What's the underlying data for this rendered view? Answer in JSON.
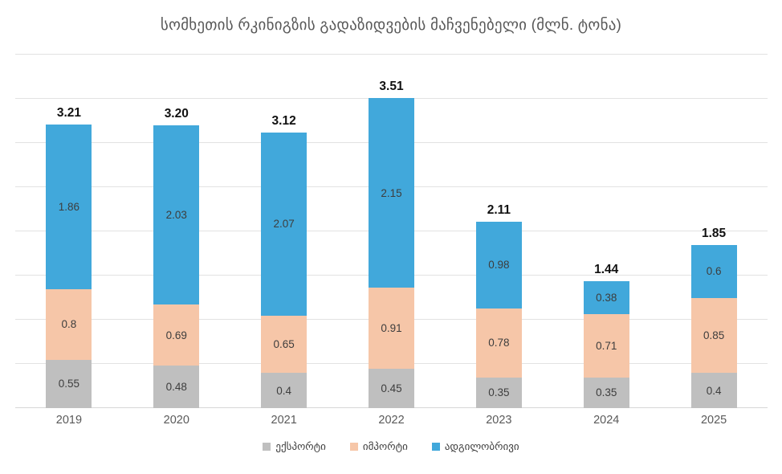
{
  "chart_data": {
    "type": "bar",
    "stacked": true,
    "title": "სომხეთის რკინიგზის გადაზიდვების მაჩვენებელი (მლნ. ტონა)",
    "categories": [
      "2019",
      "2020",
      "2021",
      "2022",
      "2023",
      "2024",
      "2025"
    ],
    "series": [
      {
        "name": "ექსპორტი",
        "color": "#bfbfbf",
        "values": [
          "0.55",
          "0.48",
          "0.4",
          "0.45",
          "0.35",
          "0.35",
          "0.4"
        ]
      },
      {
        "name": "იმპორტი",
        "color": "#f6c6a8",
        "values": [
          "0.8",
          "0.69",
          "0.65",
          "0.91",
          "0.78",
          "0.71",
          "0.85"
        ]
      },
      {
        "name": "ადგილობრივი",
        "color": "#41a8db",
        "values": [
          "1.86",
          "2.03",
          "2.07",
          "2.15",
          "0.98",
          "0.38",
          "0.6"
        ]
      }
    ],
    "totals": [
      "3.21",
      "3.20",
      "3.12",
      "3.51",
      "2.11",
      "1.44",
      "1.85"
    ],
    "xlabel": "",
    "ylabel": "",
    "ylim": [
      0,
      4
    ],
    "gridline_step": 0.5,
    "grid": true,
    "y_tick_labels_visible": false,
    "legend_position": "bottom",
    "colors": {
      "title_text": "#595959",
      "axis_label_text": "#595959",
      "segment_label_text": "#3d3d3d",
      "total_label_text": "#111111",
      "gridline": "#e2e2e2",
      "background": "#ffffff"
    }
  }
}
